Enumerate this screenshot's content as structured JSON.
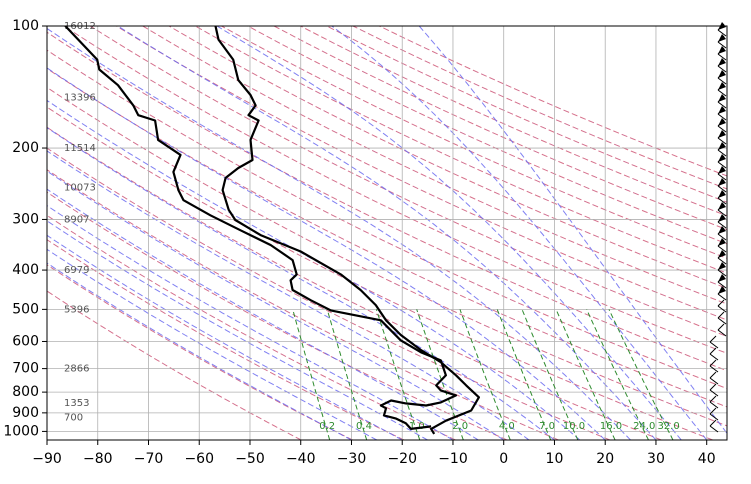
{
  "chart_data": {
    "type": "skew-t",
    "xlim": [
      -90,
      44
    ],
    "ylim": [
      1050,
      100
    ],
    "log_y": true,
    "grid": true,
    "xticks": [
      {
        "value": -90,
        "label": "−90"
      },
      {
        "value": -80,
        "label": "−80"
      },
      {
        "value": -70,
        "label": "−70"
      },
      {
        "value": -60,
        "label": "−60"
      },
      {
        "value": -50,
        "label": "−50"
      },
      {
        "value": -40,
        "label": "−40"
      },
      {
        "value": -30,
        "label": "−30"
      },
      {
        "value": -20,
        "label": "−20"
      },
      {
        "value": -10,
        "label": "−10"
      },
      0,
      10,
      20,
      30,
      40
    ],
    "yticks": [
      100,
      200,
      300,
      400,
      500,
      600,
      700,
      800,
      900,
      1000
    ],
    "series": [
      {
        "color": "#000000",
        "values": [
          -56.8,
          -56.2,
          -53.3,
          -52.3,
          -49.9,
          -48.9,
          -50.3,
          -48.3,
          -49.9,
          -49.5,
          -52.3,
          -54.8,
          -55.4,
          -54.2,
          -52.9,
          -47.9,
          -40.0,
          -32.1,
          -28.2,
          -25.2,
          -23.2,
          -20.3,
          -16.3,
          -12.4,
          -9.4,
          -7.4,
          -4.9,
          -6.4,
          -11.4,
          -14.3,
          -13.7
        ],
        "pressure": [
          100,
          108,
          121,
          136,
          148,
          157,
          166,
          171,
          191,
          214,
          224,
          237,
          254,
          284,
          301,
          328,
          360,
          410,
          448,
          488,
          532,
          578,
          630,
          675,
          727,
          770,
          824,
          888,
          941,
          986,
          1014
        ]
      },
      {
        "color": "#000000",
        "values": [
          -86.4,
          -80.1,
          -79.7,
          -76.0,
          -73.0,
          -72.0,
          -68.7,
          -68.1,
          -63.7,
          -65.1,
          -64.1,
          -63.1,
          -57.8,
          -51.9,
          -45.9,
          -41.6,
          -40.8,
          -42.0,
          -41.6,
          -38.0,
          -34.1,
          -24.2,
          -20.3,
          -16.3,
          -12.4,
          -11.4,
          -13.3,
          -12.4,
          -9.4,
          -12.4,
          -15.3,
          -19.3,
          -22.2,
          -24.2,
          -23.2,
          -23.6,
          -21.3,
          -19.3,
          -18.3,
          -14.3
        ],
        "pressure": [
          100,
          121,
          128,
          140,
          157,
          166,
          171,
          191,
          208,
          229,
          254,
          269,
          293,
          319,
          347,
          378,
          410,
          424,
          448,
          475,
          503,
          532,
          596,
          638,
          668,
          727,
          770,
          792,
          815,
          848,
          863,
          853,
          839,
          863,
          877,
          913,
          929,
          955,
          986,
          972
        ]
      }
    ],
    "mixing_ratio": {
      "color": "#2e8b2e",
      "values": [
        0.2,
        0.4,
        1,
        2,
        4,
        7,
        10,
        16,
        24,
        32
      ],
      "value_labels": [
        "0.2",
        "0.4",
        "1.0",
        "2.0",
        "4.0",
        "7.0",
        "10.0",
        "16.0",
        "24.0",
        "32.0"
      ]
    },
    "heights": {
      "color": "#555555",
      "pressure": [
        100,
        150,
        200,
        250,
        300,
        400,
        500,
        700,
        850,
        925
      ],
      "values": [
        16012,
        13396,
        11514,
        10073,
        8907,
        6979,
        5396,
        2866,
        1353,
        700
      ]
    }
  }
}
